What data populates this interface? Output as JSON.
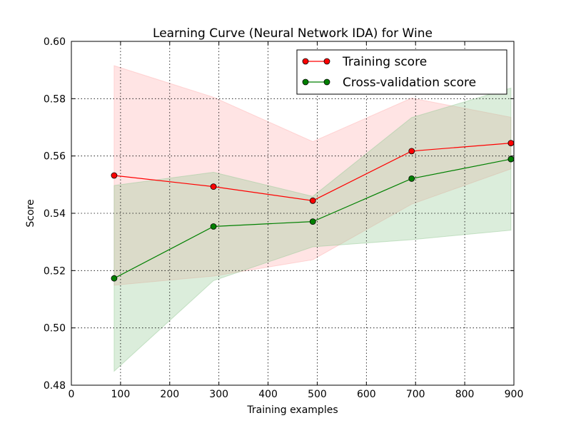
{
  "chart_data": {
    "type": "line",
    "title": "Learning Curve (Neural Network IDA) for Wine",
    "xlabel": "Training examples",
    "ylabel": "Score",
    "xlim": [
      0,
      900
    ],
    "ylim": [
      0.48,
      0.6
    ],
    "xticks": [
      0,
      100,
      200,
      300,
      400,
      500,
      600,
      700,
      800,
      900
    ],
    "yticks": [
      0.48,
      0.5,
      0.52,
      0.54,
      0.56,
      0.58,
      0.6
    ],
    "xtick_labels": [
      "0",
      "100",
      "200",
      "300",
      "400",
      "500",
      "600",
      "700",
      "800",
      "900"
    ],
    "ytick_labels": [
      "0.48",
      "0.50",
      "0.52",
      "0.54",
      "0.56",
      "0.58",
      "0.60"
    ],
    "grid": true,
    "legend_position": "top-right",
    "x": [
      87,
      289,
      491,
      692,
      894
    ],
    "series": [
      {
        "name": "Training score",
        "color": "#ff0000",
        "band_color": "#ffb3b3",
        "values": [
          0.5532,
          0.5493,
          0.5444,
          0.5617,
          0.5645
        ],
        "band_upper": [
          0.5915,
          0.5805,
          0.565,
          0.5802,
          0.5735
        ],
        "band_lower": [
          0.5149,
          0.5181,
          0.5238,
          0.5432,
          0.5555
        ]
      },
      {
        "name": "Cross-validation score",
        "color": "#008000",
        "band_color": "#99cc99",
        "values": [
          0.5173,
          0.5354,
          0.5371,
          0.5521,
          0.5589
        ],
        "band_upper": [
          0.5497,
          0.5543,
          0.5459,
          0.5734,
          0.5837
        ],
        "band_lower": [
          0.4849,
          0.5165,
          0.5283,
          0.5308,
          0.5341
        ]
      }
    ]
  }
}
